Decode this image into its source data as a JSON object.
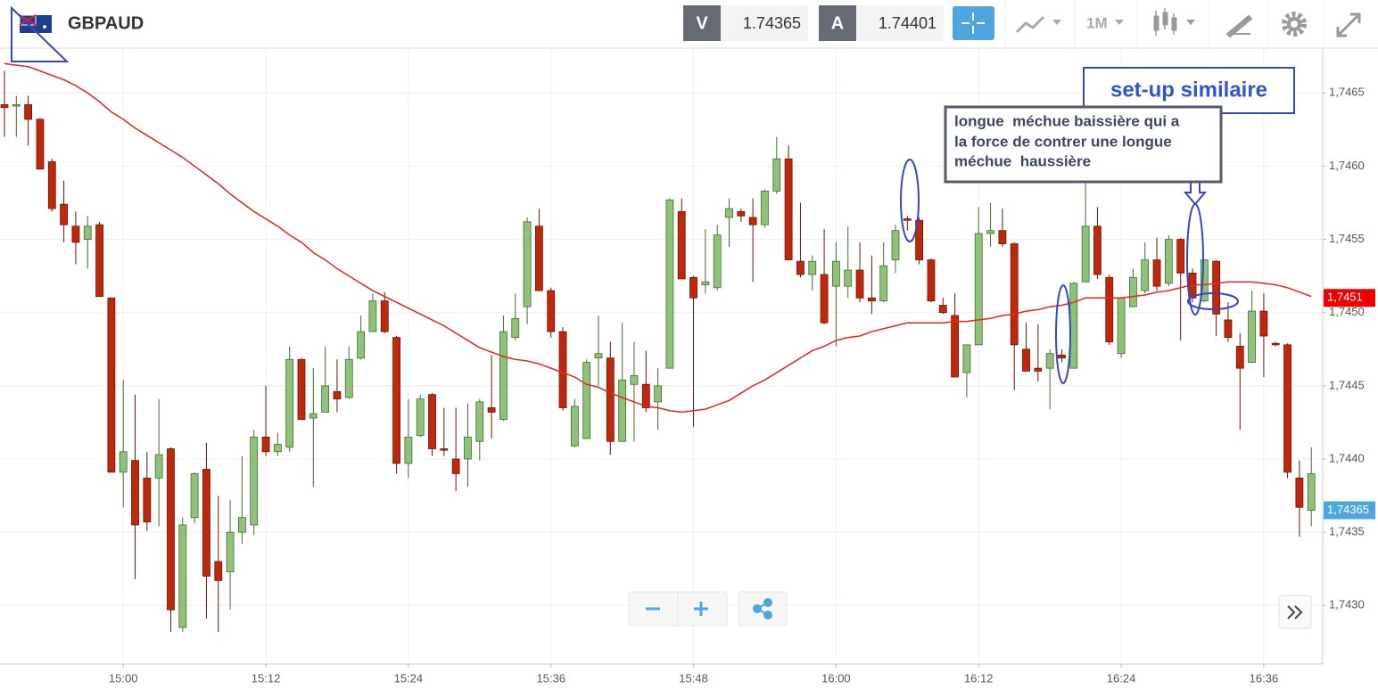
{
  "header": {
    "symbol": "GBPAUD",
    "bid_label": "V",
    "bid": 1.74365,
    "ask_label": "A",
    "ask": 1.74401,
    "timeframe": "1M"
  },
  "chart_data": {
    "type": "candlestick",
    "up_color": "#8fc17a",
    "up_edge": "#3f6f2e",
    "down_color": "#c0280c",
    "down_edge": "#6a1405",
    "grid": true,
    "ylim": [
      1.7426,
      1.7468
    ],
    "yticks": [
      {
        "value": 1.743,
        "label": "1,7430"
      },
      {
        "value": 1.7435,
        "label": "1,7435"
      },
      {
        "value": 1.744,
        "label": "1,7440"
      },
      {
        "value": 1.7445,
        "label": "1,7445"
      },
      {
        "value": 1.745,
        "label": "1,7450"
      },
      {
        "value": 1.7455,
        "label": "1,7455"
      },
      {
        "value": 1.746,
        "label": "1,7460"
      },
      {
        "value": 1.7465,
        "label": "1,7465"
      }
    ],
    "categories": [
      null,
      null,
      null,
      null,
      null,
      null,
      null,
      null,
      null,
      null,
      "15:00",
      null,
      null,
      null,
      null,
      null,
      null,
      null,
      null,
      null,
      null,
      null,
      "15:12",
      null,
      null,
      null,
      null,
      null,
      null,
      null,
      null,
      null,
      null,
      null,
      "15:24",
      null,
      null,
      null,
      null,
      null,
      null,
      null,
      null,
      null,
      null,
      null,
      "15:36",
      null,
      null,
      null,
      null,
      null,
      null,
      null,
      null,
      null,
      null,
      null,
      "15:48",
      null,
      null,
      null,
      null,
      null,
      null,
      null,
      null,
      null,
      null,
      null,
      "16:00",
      null,
      null,
      null,
      null,
      null,
      null,
      null,
      null,
      null,
      null,
      null,
      "16:12",
      null,
      null,
      null,
      null,
      null,
      null,
      null,
      null,
      null,
      null,
      null,
      "16:24",
      null,
      null,
      null,
      null,
      null,
      null,
      null,
      null,
      null,
      null,
      null,
      "16:36",
      null,
      null,
      null,
      null
    ],
    "open": [
      1.74642,
      1.74641,
      1.74642,
      1.74632,
      1.74603,
      1.74574,
      1.74559,
      1.7455,
      1.7456,
      1.7451,
      1.74391,
      1.74399,
      1.74387,
      1.74387,
      1.74407,
      1.74285,
      1.7436,
      1.74393,
      1.7433,
      1.74323,
      1.7435,
      1.74355,
      1.74415,
      1.74405,
      1.74408,
      1.74468,
      1.74428,
      1.74432,
      1.74446,
      1.74442,
      1.74469,
      1.74487,
      1.74508,
      1.74483,
      1.74397,
      1.74416,
      1.74444,
      1.74407,
      1.744,
      1.744,
      1.74412,
      1.74435,
      1.74427,
      1.74483,
      1.74504,
      1.74559,
      1.74515,
      1.74487,
      1.74409,
      1.74414,
      1.74469,
      1.74469,
      1.74412,
      1.74451,
      1.74451,
      1.74439,
      1.74462,
      1.74569,
      1.74524,
      1.74519,
      1.74517,
      1.74565,
      1.74569,
      1.74565,
      1.7456,
      1.74583,
      1.74605,
      1.74535,
      1.74526,
      1.74526,
      1.74518,
      1.74518,
      1.74529,
      1.7451,
      1.74508,
      1.74536,
      1.74564,
      1.74563,
      1.74536,
      1.74505,
      1.74498,
      1.74459,
      1.74478,
      1.74554,
      1.74556,
      1.74547,
      1.74475,
      1.74462,
      1.74462,
      1.74471,
      1.74462,
      1.74521,
      1.74559,
      1.74524,
      1.74472,
      1.74504,
      1.74515,
      1.74536,
      1.7452,
      1.7455,
      1.74527,
      1.74508,
      1.74535,
      1.74495,
      1.74477,
      1.74466,
      1.74501,
      1.74479,
      1.74478,
      1.74387,
      1.74365
    ],
    "high": [
      1.74665,
      1.74648,
      1.74648,
      1.74633,
      1.74605,
      1.7459,
      1.74569,
      1.74566,
      1.74562,
      1.7451,
      1.74454,
      1.74444,
      1.74405,
      1.74441,
      1.74408,
      1.7436,
      1.74391,
      1.74411,
      1.74375,
      1.74372,
      1.74402,
      1.7442,
      1.7445,
      1.74418,
      1.74477,
      1.74469,
      1.74462,
      1.74477,
      1.74468,
      1.74477,
      1.74498,
      1.74513,
      1.74514,
      1.74484,
      1.74441,
      1.74444,
      1.74445,
      1.74435,
      1.74435,
      1.74438,
      1.74441,
      1.74471,
      1.74498,
      1.74513,
      1.74565,
      1.74571,
      1.74517,
      1.7449,
      1.74441,
      1.74468,
      1.74498,
      1.7448,
      1.74493,
      1.7448,
      1.74474,
      1.74462,
      1.74578,
      1.74578,
      1.74525,
      1.74557,
      1.7456,
      1.74578,
      1.74571,
      1.74578,
      1.74584,
      1.7462,
      1.74614,
      1.74575,
      1.74539,
      1.74557,
      1.74548,
      1.74559,
      1.74548,
      1.74539,
      1.74548,
      1.7456,
      1.74566,
      1.74565,
      1.74537,
      1.7451,
      1.74513,
      1.74478,
      1.74572,
      1.74575,
      1.74571,
      1.74548,
      1.74493,
      1.74492,
      1.74475,
      1.74475,
      1.74521,
      1.74589,
      1.74572,
      1.74526,
      1.7451,
      1.7453,
      1.74548,
      1.74551,
      1.74553,
      1.74551,
      1.7453,
      1.74536,
      1.74536,
      1.74507,
      1.74486,
      1.74515,
      1.74513,
      1.7448,
      1.74479,
      1.74399,
      1.74408
    ],
    "low": [
      1.7462,
      1.7462,
      1.74614,
      1.74598,
      1.74569,
      1.74548,
      1.74533,
      1.7453,
      1.74511,
      1.74391,
      1.74367,
      1.74318,
      1.74351,
      1.74354,
      1.74282,
      1.74282,
      1.74356,
      1.74291,
      1.74282,
      1.74297,
      1.74342,
      1.74348,
      1.74402,
      1.74402,
      1.74405,
      1.74427,
      1.74381,
      1.74432,
      1.74432,
      1.74441,
      1.74468,
      1.74487,
      1.74486,
      1.7439,
      1.74387,
      1.74415,
      1.74402,
      1.74402,
      1.74378,
      1.74381,
      1.74399,
      1.74414,
      1.74426,
      1.74481,
      1.74492,
      1.74515,
      1.74483,
      1.74433,
      1.74408,
      1.74414,
      1.7445,
      1.74403,
      1.74412,
      1.74412,
      1.74432,
      1.7442,
      1.74462,
      1.74523,
      1.74422,
      1.74513,
      1.74515,
      1.74545,
      1.74562,
      1.74521,
      1.74558,
      1.74581,
      1.74536,
      1.74524,
      1.74515,
      1.74492,
      1.74477,
      1.7451,
      1.74507,
      1.74499,
      1.74507,
      1.74527,
      1.74556,
      1.74533,
      1.74507,
      1.74499,
      1.74456,
      1.74442,
      1.74478,
      1.74545,
      1.74545,
      1.74447,
      1.7446,
      1.74453,
      1.74434,
      1.74466,
      1.74462,
      1.74521,
      1.74523,
      1.74478,
      1.74469,
      1.74504,
      1.74513,
      1.74515,
      1.74518,
      1.74481,
      1.74507,
      1.74507,
      1.74484,
      1.7448,
      1.7442,
      1.74466,
      1.74456,
      1.74477,
      1.74387,
      1.74347,
      1.74354
    ],
    "close": [
      1.7464,
      1.74642,
      1.74632,
      1.74598,
      1.74571,
      1.7456,
      1.74548,
      1.74559,
      1.74511,
      1.74391,
      1.74405,
      1.74355,
      1.74357,
      1.74403,
      1.74297,
      1.74355,
      1.7439,
      1.7432,
      1.74317,
      1.7435,
      1.7436,
      1.74415,
      1.74405,
      1.7441,
      1.74468,
      1.74427,
      1.74431,
      1.7445,
      1.74441,
      1.74468,
      1.74487,
      1.74508,
      1.74487,
      1.74397,
      1.74415,
      1.74441,
      1.74407,
      1.74406,
      1.7439,
      1.74415,
      1.74439,
      1.74432,
      1.74487,
      1.74496,
      1.74562,
      1.74515,
      1.74487,
      1.74435,
      1.74436,
      1.74466,
      1.74472,
      1.74412,
      1.74454,
      1.74457,
      1.74435,
      1.7445,
      1.74577,
      1.74523,
      1.7451,
      1.74521,
      1.74553,
      1.74571,
      1.74566,
      1.7456,
      1.74583,
      1.74605,
      1.74536,
      1.74526,
      1.74535,
      1.74493,
      1.74535,
      1.74529,
      1.7451,
      1.74508,
      1.74532,
      1.74556,
      1.74563,
      1.74536,
      1.74508,
      1.745,
      1.74456,
      1.74478,
      1.74554,
      1.74556,
      1.74547,
      1.74478,
      1.7446,
      1.7446,
      1.74472,
      1.74469,
      1.7452,
      1.74559,
      1.74526,
      1.7448,
      1.7451,
      1.74524,
      1.74536,
      1.74518,
      1.7455,
      1.74527,
      1.7451,
      1.74536,
      1.74499,
      1.74483,
      1.74462,
      1.74501,
      1.74484,
      1.74478,
      1.74391,
      1.74367,
      1.7439
    ],
    "moving_average": {
      "color": "#e8251f",
      "values": [
        1.7467,
        1.74669,
        1.74668,
        1.74665,
        1.74662,
        1.74659,
        1.74655,
        1.7465,
        1.74644,
        1.74637,
        1.74632,
        1.74626,
        1.74621,
        1.74616,
        1.74611,
        1.74606,
        1.746,
        1.74594,
        1.74588,
        1.74581,
        1.74575,
        1.74569,
        1.74564,
        1.74559,
        1.74553,
        1.74548,
        1.74541,
        1.74536,
        1.7453,
        1.74525,
        1.7452,
        1.74515,
        1.74511,
        1.74507,
        1.74503,
        1.74499,
        1.74495,
        1.74491,
        1.74486,
        1.74481,
        1.74476,
        1.74473,
        1.7447,
        1.74468,
        1.74467,
        1.74465,
        1.74462,
        1.74459,
        1.74456,
        1.74451,
        1.74449,
        1.74445,
        1.74442,
        1.74439,
        1.74436,
        1.74435,
        1.74433,
        1.74432,
        1.74433,
        1.74434,
        1.74437,
        1.7444,
        1.74445,
        1.7445,
        1.74454,
        1.74459,
        1.74464,
        1.74469,
        1.74474,
        1.74477,
        1.74481,
        1.74483,
        1.74484,
        1.74487,
        1.74489,
        1.74491,
        1.74493,
        1.74493,
        1.74493,
        1.74493,
        1.74494,
        1.74494,
        1.74495,
        1.74496,
        1.74498,
        1.74499,
        1.74501,
        1.74502,
        1.74504,
        1.74505,
        1.74507,
        1.7451,
        1.7451,
        1.7451,
        1.7451,
        1.74511,
        1.74512,
        1.74514,
        1.74515,
        1.74517,
        1.74519,
        1.74519,
        1.7452,
        1.74521,
        1.74521,
        1.74521,
        1.7452,
        1.74519,
        1.74517,
        1.74514,
        1.74511
      ]
    },
    "price_tags": [
      {
        "value": 1.7451,
        "label": "1,7451",
        "color": "#ee0000"
      },
      {
        "value": 1.74365,
        "label": "1,74365",
        "color": "#4aa8dc"
      }
    ],
    "annotations": {
      "title": "set-up similaire",
      "note": [
        "longue  méchue baissière qui a",
        "la force de contrer une longue",
        "méchue  haussière"
      ]
    }
  }
}
